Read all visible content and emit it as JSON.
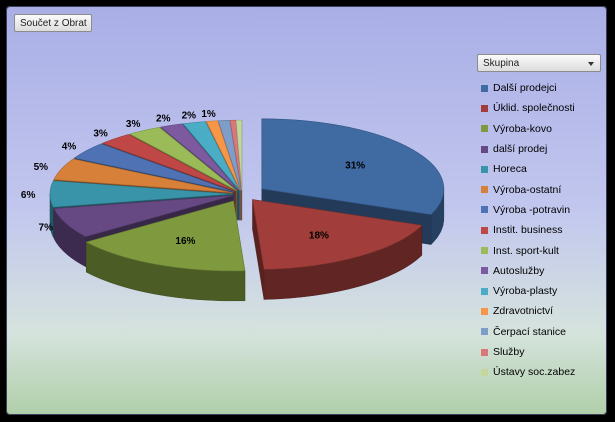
{
  "field_button": {
    "label": "Součet z Obrat"
  },
  "legend": {
    "title": "Skupina"
  },
  "chart_data": {
    "type": "pie",
    "title": "",
    "categories": [
      "Další prodejci",
      "Úklid. společnosti",
      "Výroba-kovo",
      "další prodej",
      "Horeca",
      "Výroba-ostatní",
      "Výroba -potravin",
      "Instit. business",
      "Inst. sport-kult",
      "Autoslužby",
      "Výroba-plasty",
      "Zdravotnictví",
      "Čerpací stanice",
      "Služby",
      "Ústavy soc.zabez"
    ],
    "values": [
      31,
      18,
      16,
      7,
      6,
      5,
      4,
      3,
      3,
      2,
      2,
      1,
      1,
      0.5,
      0.5
    ],
    "data_labels": [
      "31%",
      "18%",
      "16%",
      "7%",
      "6%",
      "5%",
      "4%",
      "3%",
      "3%",
      "2%",
      "2%",
      "1%",
      "",
      "",
      ""
    ],
    "colors": [
      "#3f6aa2",
      "#a13e3b",
      "#7f9a3e",
      "#664883",
      "#3a94a9",
      "#d7803a",
      "#4e72b3",
      "#bf4846",
      "#9bbb59",
      "#7d5aa0",
      "#4bacc6",
      "#f79646",
      "#7f9dc9",
      "#d9777a",
      "#c3d69b"
    ],
    "legend_position": "right"
  }
}
